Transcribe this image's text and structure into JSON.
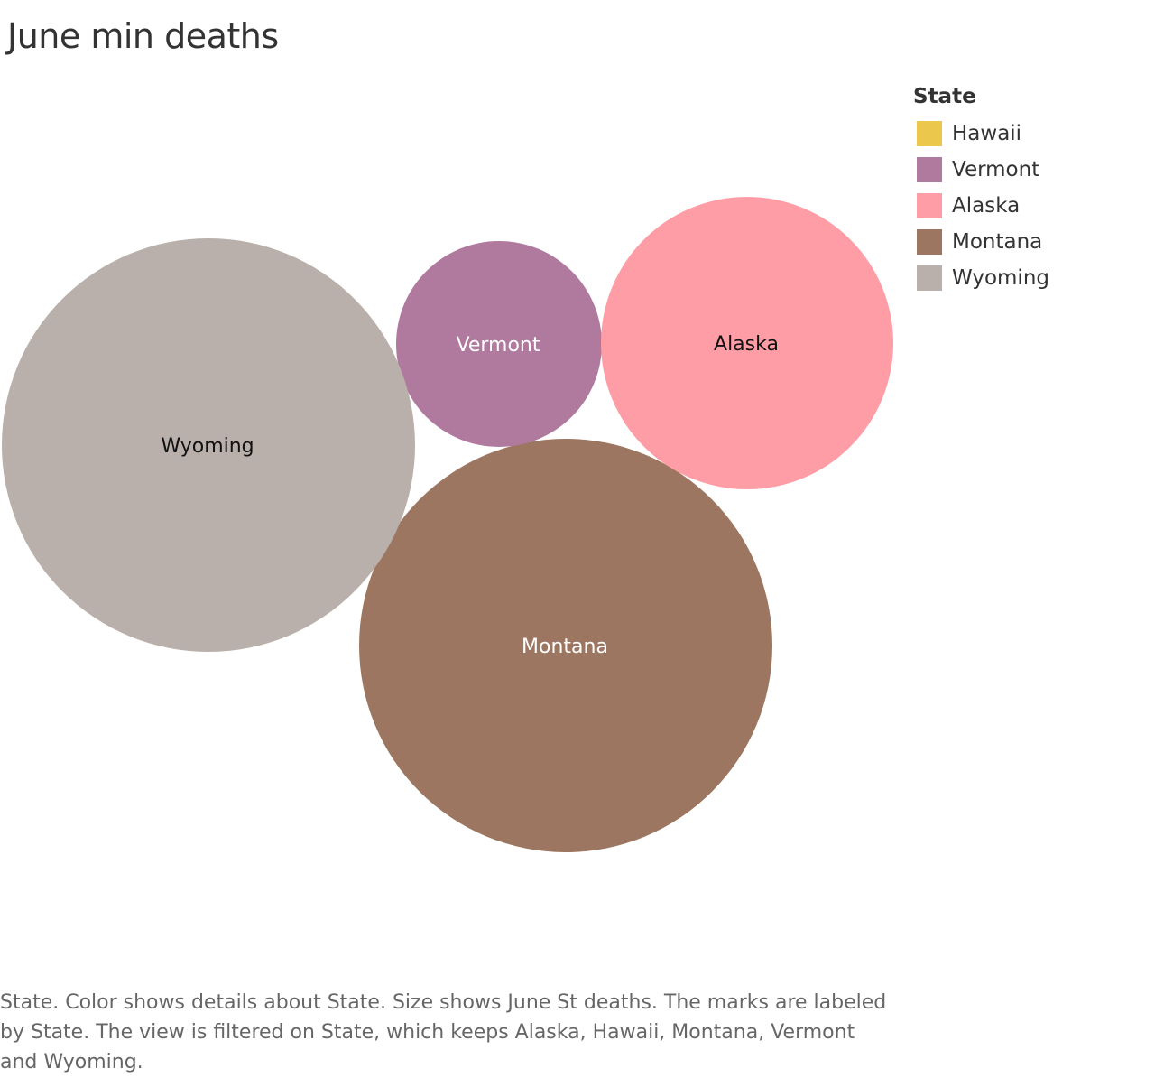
{
  "chart_data": {
    "type": "packed-bubble",
    "title": "June min deaths",
    "legend": {
      "title": "State",
      "placement": "top-right",
      "items": [
        {
          "label": "Hawaii",
          "color": "#EBC74B"
        },
        {
          "label": "Vermont",
          "color": "#B0799E"
        },
        {
          "label": "Alaska",
          "color": "#FF9DA6"
        },
        {
          "label": "Montana",
          "color": "#9C7660"
        },
        {
          "label": "Wyoming",
          "color": "#BAB0AB"
        }
      ]
    },
    "marks": [
      {
        "label": "Wyoming",
        "color": "#BAB0AB",
        "label_color": "#111111",
        "relative_size": 1.0
      },
      {
        "label": "Vermont",
        "color": "#B0799E",
        "label_color": "#ffffff",
        "relative_size": 0.246
      },
      {
        "label": "Alaska",
        "color": "#FF9DA6",
        "label_color": "#111111",
        "relative_size": 0.5
      },
      {
        "label": "Montana",
        "color": "#9C7660",
        "label_color": "#ffffff",
        "relative_size": 1.0
      }
    ],
    "caption": "State.  Color shows details about State.  Size shows June St deaths.  The marks are labeled by State. The view is filtered on State, which keeps Alaska, Hawaii, Montana, Vermont and Wyoming."
  }
}
